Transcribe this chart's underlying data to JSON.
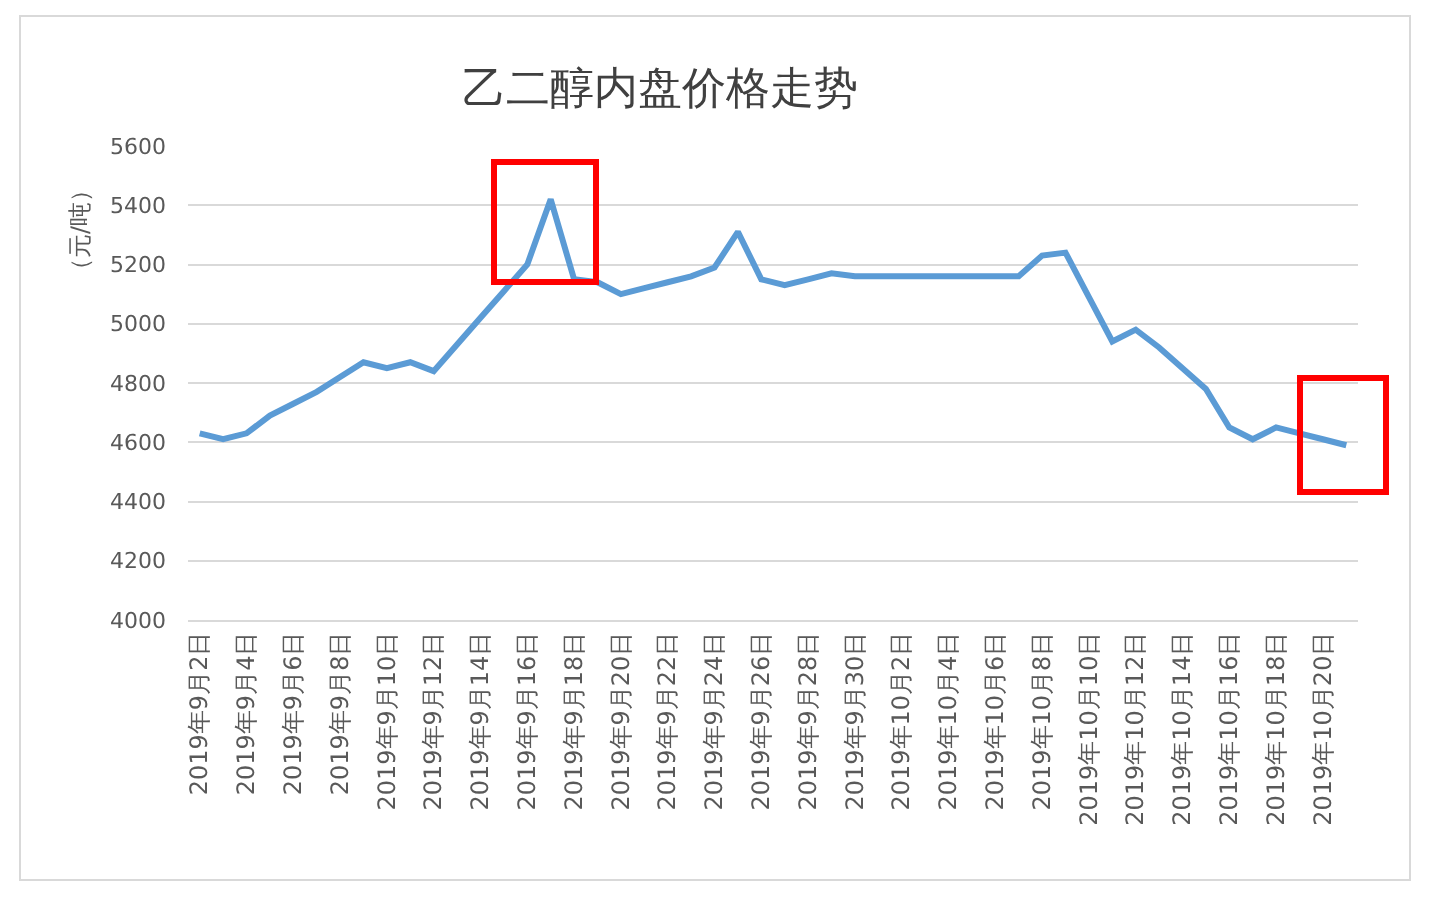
{
  "chart_data": {
    "type": "line",
    "title": "乙二醇内盘价格走势",
    "ylabel": "（元/吨）",
    "x": [
      "2019-09-02",
      "2019-09-03",
      "2019-09-04",
      "2019-09-05",
      "2019-09-06",
      "2019-09-07",
      "2019-09-08",
      "2019-09-09",
      "2019-09-10",
      "2019-09-11",
      "2019-09-12",
      "2019-09-13",
      "2019-09-14",
      "2019-09-15",
      "2019-09-16",
      "2019-09-17",
      "2019-09-18",
      "2019-09-19",
      "2019-09-20",
      "2019-09-21",
      "2019-09-22",
      "2019-09-23",
      "2019-09-24",
      "2019-09-25",
      "2019-09-26",
      "2019-09-27",
      "2019-09-28",
      "2019-09-29",
      "2019-09-30",
      "2019-10-01",
      "2019-10-02",
      "2019-10-03",
      "2019-10-04",
      "2019-10-05",
      "2019-10-06",
      "2019-10-07",
      "2019-10-08",
      "2019-10-09",
      "2019-10-10",
      "2019-10-11",
      "2019-10-12",
      "2019-10-13",
      "2019-10-14",
      "2019-10-15",
      "2019-10-16",
      "2019-10-17",
      "2019-10-18",
      "2019-10-19",
      "2019-10-20",
      "2019-10-21"
    ],
    "series": [
      {
        "color": "#5b9bd5",
        "values": [
          4630,
          4610,
          4630,
          4690,
          4730,
          4770,
          4820,
          4870,
          4850,
          4870,
          4840,
          4930,
          5020,
          5110,
          5200,
          5420,
          5150,
          5140,
          5100,
          5120,
          5140,
          5160,
          5190,
          5310,
          5150,
          5130,
          5150,
          5170,
          5160,
          5160,
          5160,
          5160,
          5160,
          5160,
          5160,
          5160,
          5230,
          5240,
          5090,
          4940,
          4980,
          4920,
          4850,
          4780,
          4650,
          4610,
          4650,
          4630,
          4610,
          4590
        ]
      }
    ],
    "xlim": [
      "2019-09-01T12:00",
      "2019-10-21T12:00"
    ],
    "xticks": [
      {
        "value": "2019-09-02",
        "label": "2019年9月2日"
      },
      {
        "value": "2019-09-04",
        "label": "2019年9月4日"
      },
      {
        "value": "2019-09-06",
        "label": "2019年9月6日"
      },
      {
        "value": "2019-09-08",
        "label": "2019年9月8日"
      },
      {
        "value": "2019-09-10",
        "label": "2019年9月10日"
      },
      {
        "value": "2019-09-12",
        "label": "2019年9月12日"
      },
      {
        "value": "2019-09-14",
        "label": "2019年9月14日"
      },
      {
        "value": "2019-09-16",
        "label": "2019年9月16日"
      },
      {
        "value": "2019-09-18",
        "label": "2019年9月18日"
      },
      {
        "value": "2019-09-20",
        "label": "2019年9月20日"
      },
      {
        "value": "2019-09-22",
        "label": "2019年9月22日"
      },
      {
        "value": "2019-09-24",
        "label": "2019年9月24日"
      },
      {
        "value": "2019-09-26",
        "label": "2019年9月26日"
      },
      {
        "value": "2019-09-28",
        "label": "2019年9月28日"
      },
      {
        "value": "2019-09-30",
        "label": "2019年9月30日"
      },
      {
        "value": "2019-10-02",
        "label": "2019年10月2日"
      },
      {
        "value": "2019-10-04",
        "label": "2019年10月4日"
      },
      {
        "value": "2019-10-06",
        "label": "2019年10月6日"
      },
      {
        "value": "2019-10-08",
        "label": "2019年10月8日"
      },
      {
        "value": "2019-10-10",
        "label": "2019年10月10日"
      },
      {
        "value": "2019-10-12",
        "label": "2019年10月12日"
      },
      {
        "value": "2019-10-14",
        "label": "2019年10月14日"
      },
      {
        "value": "2019-10-16",
        "label": "2019年10月16日"
      },
      {
        "value": "2019-10-18",
        "label": "2019年10月18日"
      },
      {
        "value": "2019-10-20",
        "label": "2019年10月20日"
      }
    ],
    "ylim": [
      4000,
      5600
    ],
    "yticks": [
      4000,
      4200,
      4400,
      4600,
      4800,
      5000,
      5200,
      5400,
      5600
    ],
    "grid": "y"
  }
}
